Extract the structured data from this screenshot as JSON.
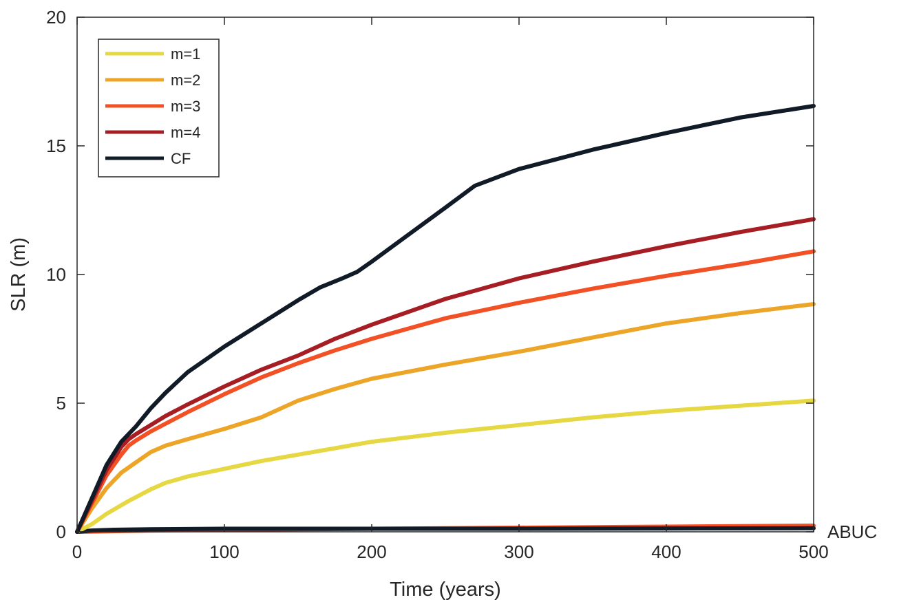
{
  "chart_data": {
    "type": "line",
    "title": "",
    "xlabel": "Time (years)",
    "ylabel": "SLR (m)",
    "xlim": [
      0,
      500
    ],
    "ylim": [
      0,
      20
    ],
    "xticks": [
      0,
      100,
      200,
      300,
      400,
      500
    ],
    "yticks": [
      0,
      5,
      10,
      15,
      20
    ],
    "grid": false,
    "legend_position": "top-left",
    "annotations": [
      {
        "text": "ABUC",
        "x": 500,
        "y": 0
      }
    ],
    "series": [
      {
        "name": "m=1",
        "color": "#e5d842",
        "x": [
          0,
          10,
          20,
          35,
          50,
          60,
          75,
          100,
          125,
          150,
          175,
          200,
          250,
          300,
          350,
          400,
          450,
          500
        ],
        "values": [
          0,
          0.3,
          0.7,
          1.2,
          1.65,
          1.9,
          2.15,
          2.45,
          2.75,
          3.0,
          3.25,
          3.5,
          3.85,
          4.15,
          4.45,
          4.7,
          4.9,
          5.1
        ]
      },
      {
        "name": "m=2",
        "color": "#eda528",
        "x": [
          0,
          10,
          20,
          30,
          40,
          50,
          60,
          75,
          100,
          125,
          150,
          175,
          200,
          250,
          300,
          350,
          400,
          450,
          500
        ],
        "values": [
          0,
          0.9,
          1.7,
          2.3,
          2.7,
          3.1,
          3.35,
          3.6,
          4.0,
          4.45,
          5.1,
          5.55,
          5.95,
          6.5,
          7.0,
          7.55,
          8.1,
          8.5,
          8.85
        ]
      },
      {
        "name": "m=3",
        "color": "#f25025",
        "x": [
          0,
          10,
          20,
          30,
          35,
          40,
          50,
          60,
          75,
          100,
          125,
          150,
          175,
          200,
          250,
          300,
          350,
          400,
          450,
          500
        ],
        "values": [
          0,
          1.1,
          2.2,
          3.0,
          3.35,
          3.55,
          3.9,
          4.2,
          4.65,
          5.35,
          6.0,
          6.55,
          7.05,
          7.5,
          8.3,
          8.9,
          9.45,
          9.95,
          10.4,
          10.9
        ]
      },
      {
        "name": "m=4",
        "color": "#a61e23",
        "x": [
          0,
          10,
          20,
          30,
          35,
          40,
          50,
          60,
          75,
          100,
          125,
          150,
          175,
          200,
          250,
          300,
          350,
          400,
          450,
          500
        ],
        "values": [
          0,
          1.2,
          2.4,
          3.3,
          3.6,
          3.8,
          4.15,
          4.5,
          4.95,
          5.65,
          6.3,
          6.85,
          7.5,
          8.05,
          9.05,
          9.85,
          10.5,
          11.1,
          11.65,
          12.15
        ]
      },
      {
        "name": "CF",
        "color": "#111b27",
        "x": [
          0,
          10,
          20,
          30,
          40,
          50,
          60,
          75,
          100,
          125,
          150,
          165,
          180,
          190,
          200,
          225,
          250,
          270,
          300,
          350,
          400,
          450,
          500
        ],
        "values": [
          0,
          1.3,
          2.6,
          3.5,
          4.1,
          4.8,
          5.4,
          6.2,
          7.2,
          8.1,
          9.0,
          9.5,
          9.85,
          10.1,
          10.5,
          11.55,
          12.6,
          13.45,
          14.1,
          14.85,
          15.5,
          16.1,
          16.55
        ]
      },
      {
        "name": "",
        "color": "#f25025",
        "x": [
          0,
          50,
          100,
          200,
          300,
          400,
          500
        ],
        "values": [
          0,
          0.05,
          0.08,
          0.12,
          0.16,
          0.2,
          0.24
        ]
      },
      {
        "name": "",
        "color": "#111b27",
        "x": [
          0,
          10,
          25,
          50,
          100,
          200,
          300,
          400,
          500
        ],
        "values": [
          0,
          0.05,
          0.08,
          0.1,
          0.12,
          0.12,
          0.12,
          0.13,
          0.14
        ]
      }
    ]
  }
}
